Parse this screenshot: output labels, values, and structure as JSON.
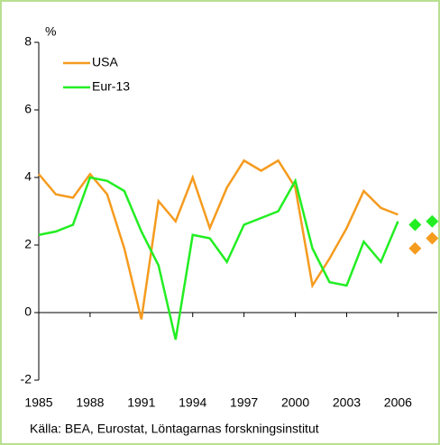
{
  "chart_data": {
    "type": "line",
    "y_unit": "%",
    "source": "Källa: BEA, Eurostat, Löntagarnas forskningsinstitut",
    "x": [
      1985,
      1986,
      1987,
      1988,
      1989,
      1990,
      1991,
      1992,
      1993,
      1994,
      1995,
      1996,
      1997,
      1998,
      1999,
      2000,
      2001,
      2002,
      2003,
      2004,
      2005,
      2006
    ],
    "forecast_x": [
      2007,
      2008
    ],
    "series": [
      {
        "name": "USA",
        "color": "#f59b1e",
        "values": [
          4.1,
          3.5,
          3.4,
          4.1,
          3.5,
          1.9,
          -0.2,
          3.3,
          2.7,
          4.0,
          2.5,
          3.7,
          4.5,
          4.2,
          4.5,
          3.7,
          0.8,
          1.6,
          2.5,
          3.6,
          3.1,
          2.9
        ],
        "forecast_values": [
          1.9,
          2.2
        ]
      },
      {
        "name": "Eur-13",
        "color": "#22ee22",
        "values": [
          2.3,
          2.4,
          2.6,
          4.0,
          3.9,
          3.6,
          2.4,
          1.4,
          -0.8,
          2.3,
          2.2,
          1.5,
          2.6,
          2.8,
          3.0,
          3.9,
          1.9,
          0.9,
          0.8,
          2.1,
          1.5,
          2.7
        ],
        "forecast_values": [
          2.6,
          2.7
        ]
      }
    ],
    "xlim": [
      1985,
      2008.3
    ],
    "xticks": [
      1985,
      1988,
      1991,
      1994,
      1997,
      2000,
      2003,
      2006
    ],
    "ylim": [
      -2,
      8
    ],
    "yticks": [
      -2,
      0,
      2,
      4,
      6,
      8
    ],
    "grid": false,
    "legend": "top-left"
  }
}
